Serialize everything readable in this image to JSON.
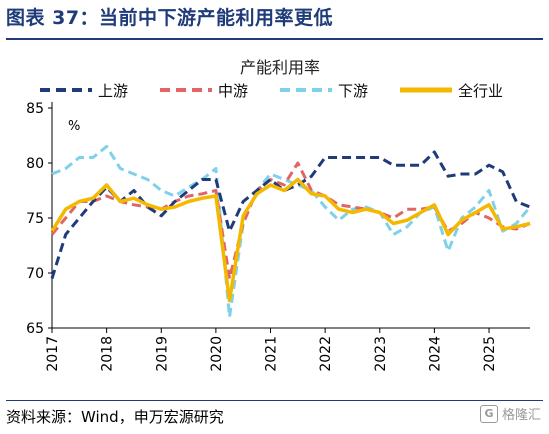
{
  "page": {
    "title": "图表 37：当前中下游产能利用率更低",
    "source": "资料来源：Wind，申万宏源研究",
    "watermark": "格隆汇"
  },
  "colors": {
    "header": "#1f3b7a",
    "upstream": "#1f3b7a",
    "midstream": "#e06666",
    "downstream": "#7fd1ea",
    "all_industry": "#f5b800"
  },
  "chart_data": {
    "type": "line",
    "title": "产能利用率",
    "unit_label": "%",
    "ylim": [
      65,
      85
    ],
    "yticks": [
      65,
      70,
      75,
      80,
      85
    ],
    "xlim": [
      2017.0,
      2025.75
    ],
    "xticks": [
      "2017",
      "2018",
      "2019",
      "2020",
      "2021",
      "2022",
      "2023",
      "2024",
      "2025"
    ],
    "grid": false,
    "legend_position": "top",
    "x": [
      2017.0,
      2017.25,
      2017.5,
      2017.75,
      2018.0,
      2018.25,
      2018.5,
      2018.75,
      2019.0,
      2019.25,
      2019.5,
      2019.75,
      2020.0,
      2020.25,
      2020.5,
      2020.75,
      2021.0,
      2021.25,
      2021.5,
      2021.75,
      2022.0,
      2022.25,
      2022.5,
      2022.75,
      2023.0,
      2023.25,
      2023.5,
      2023.75,
      2024.0,
      2024.25,
      2024.5,
      2024.75,
      2025.0,
      2025.25,
      2025.5,
      2025.75
    ],
    "series": [
      {
        "name": "上游",
        "style": "dashed",
        "color": "#1f3b7a",
        "values": [
          69.5,
          73.5,
          75.0,
          76.5,
          77.8,
          76.5,
          77.5,
          76.0,
          75.2,
          76.5,
          77.5,
          78.5,
          78.5,
          73.8,
          76.5,
          77.5,
          78.5,
          77.5,
          78.0,
          78.8,
          80.5,
          80.5,
          80.5,
          80.5,
          80.5,
          79.8,
          79.8,
          79.8,
          81.0,
          78.8,
          79.0,
          79.0,
          79.8,
          79.2,
          76.5,
          76.0
        ]
      },
      {
        "name": "中游",
        "style": "dashed",
        "color": "#e06666",
        "values": [
          73.5,
          75.0,
          76.5,
          76.5,
          77.0,
          76.5,
          76.2,
          76.0,
          75.8,
          76.5,
          77.0,
          77.2,
          77.5,
          69.5,
          74.5,
          77.5,
          78.5,
          78.0,
          80.0,
          77.5,
          77.0,
          76.2,
          76.0,
          75.8,
          75.5,
          75.0,
          75.8,
          75.8,
          76.0,
          73.8,
          74.5,
          75.5,
          75.0,
          74.2,
          74.0,
          74.5
        ]
      },
      {
        "name": "下游",
        "style": "dashed",
        "color": "#7fd1ea",
        "values": [
          79.0,
          79.5,
          80.5,
          80.5,
          81.5,
          79.5,
          79.0,
          78.5,
          77.5,
          77.0,
          77.8,
          78.5,
          79.5,
          66.0,
          74.5,
          77.5,
          79.0,
          78.5,
          78.0,
          77.5,
          76.0,
          74.8,
          75.8,
          76.0,
          75.5,
          73.5,
          74.2,
          75.5,
          76.0,
          72.0,
          75.0,
          76.0,
          77.5,
          73.8,
          74.5,
          76.0
        ]
      },
      {
        "name": "全行业",
        "style": "solid",
        "color": "#f5b800",
        "values": [
          73.8,
          75.8,
          76.5,
          76.8,
          78.0,
          76.5,
          76.8,
          76.2,
          75.8,
          76.0,
          76.5,
          76.8,
          77.0,
          67.5,
          75.2,
          77.2,
          78.0,
          77.5,
          78.5,
          77.2,
          77.0,
          75.8,
          75.5,
          75.8,
          75.5,
          74.5,
          74.8,
          75.5,
          76.2,
          73.5,
          74.8,
          75.5,
          76.2,
          74.0,
          74.2,
          74.5
        ]
      }
    ]
  }
}
